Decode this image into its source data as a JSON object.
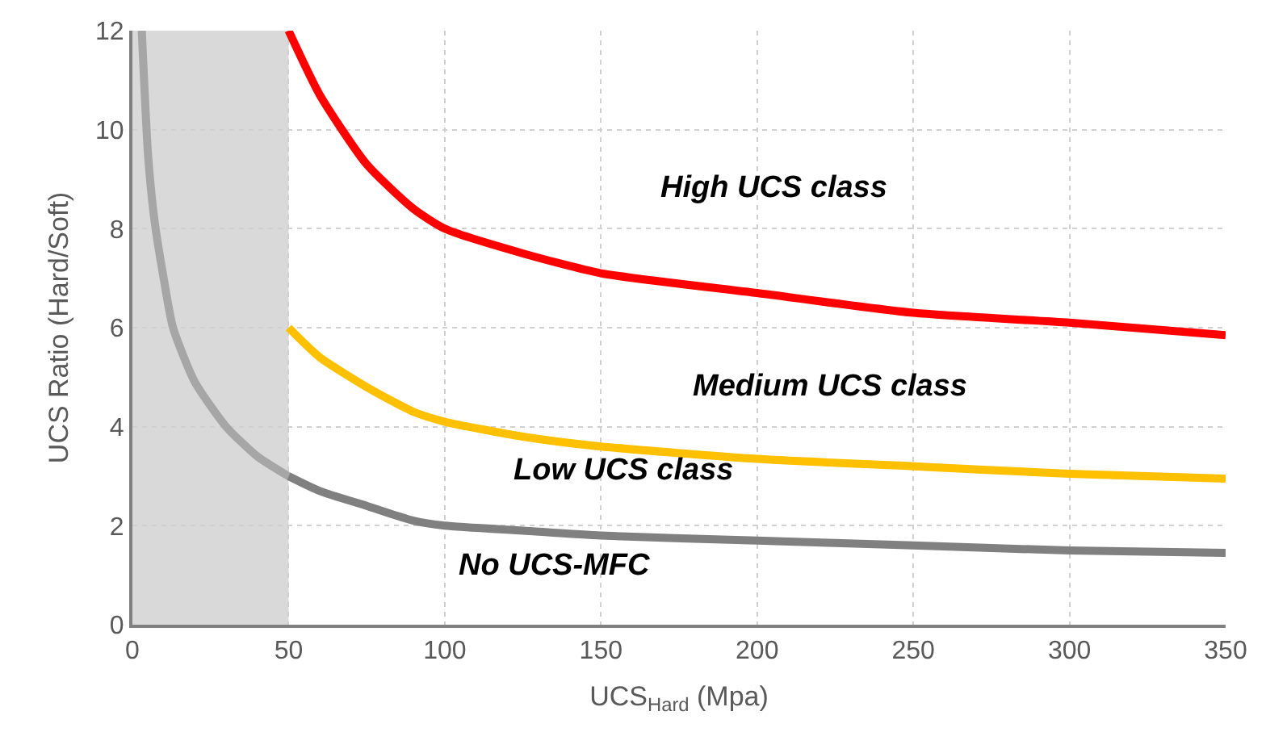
{
  "chart_data": {
    "type": "line",
    "xlabel": "UCS$_{Hard}$ (Mpa)",
    "ylabel": "UCS Ratio (Hard/Soft)",
    "xlim": [
      0,
      350
    ],
    "xticks": [
      0,
      50,
      100,
      150,
      200,
      250,
      300,
      350
    ],
    "ylim": [
      0,
      12
    ],
    "yticks": [
      0,
      2,
      4,
      6,
      8,
      10,
      12
    ],
    "grid": true,
    "marker": "none",
    "line_style": "solid",
    "series": [
      {
        "color": "#ff0000",
        "x": [
          50,
          60,
          75,
          90,
          100,
          125,
          150,
          200,
          250,
          300,
          350
        ],
        "values": [
          12,
          10.7,
          9.3,
          8.4,
          8.0,
          7.5,
          7.1,
          6.7,
          6.3,
          6.1,
          5.85
        ]
      },
      {
        "color": "#ffc000",
        "x": [
          50,
          60,
          75,
          90,
          100,
          125,
          150,
          200,
          250,
          300,
          350
        ],
        "values": [
          6,
          5.4,
          4.8,
          4.3,
          4.1,
          3.8,
          3.6,
          3.35,
          3.2,
          3.05,
          2.95
        ]
      },
      {
        "color": "#a6a6a6",
        "x": [
          3,
          5,
          7,
          10,
          13,
          20,
          30,
          40,
          50
        ],
        "values": [
          12,
          9.5,
          8.2,
          7.0,
          6.0,
          4.9,
          4.0,
          3.4,
          3.0
        ]
      },
      {
        "color": "#808080",
        "x": [
          50,
          60,
          75,
          90,
          100,
          125,
          150,
          200,
          250,
          300,
          350
        ],
        "values": [
          3.0,
          2.7,
          2.4,
          2.1,
          2.0,
          1.9,
          1.8,
          1.7,
          1.6,
          1.5,
          1.45
        ]
      }
    ],
    "bands": [
      {
        "axis": "x",
        "from": 0,
        "to": 50,
        "color": "#d9d9d9"
      }
    ],
    "annotations": [
      "High UCS class",
      "Medium UCS class",
      "Low UCS class",
      "No UCS-MFC"
    ]
  }
}
